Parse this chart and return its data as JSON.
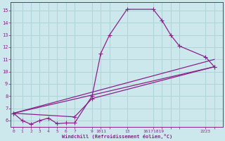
{
  "xlabel": "Windchill (Refroidissement éolien,°C)",
  "xtick_positions": [
    0,
    1,
    2,
    3,
    4,
    5,
    6,
    7,
    9,
    10,
    11,
    13,
    16,
    17,
    18,
    19,
    22,
    23
  ],
  "xtick_labels": [
    "0",
    "1",
    "2",
    "3",
    "4",
    "5",
    "6",
    "7",
    "9",
    "1011",
    "13",
    "",
    "16171819",
    "",
    "",
    "",
    "2223",
    ""
  ],
  "ytick_positions": [
    6,
    7,
    8,
    9,
    10,
    11,
    12,
    13,
    14,
    15
  ],
  "ytick_labels": [
    "6",
    "7",
    "8",
    "9",
    "10",
    "11",
    "12",
    "13",
    "14",
    "15"
  ],
  "xlim": [
    -0.3,
    24.0
  ],
  "ylim": [
    5.5,
    15.7
  ],
  "bg_color": "#cde8ec",
  "grid_color": "#afd4d8",
  "line_color": "#882288",
  "line_width": 0.9,
  "markersize": 4,
  "line1_x": [
    0,
    1,
    2,
    3,
    4,
    5,
    6,
    7,
    9,
    10,
    11,
    13,
    16,
    17,
    18,
    19,
    22,
    23
  ],
  "line1_y": [
    6.6,
    6.0,
    5.7,
    6.0,
    6.2,
    5.75,
    5.8,
    5.8,
    8.0,
    11.5,
    13.0,
    15.1,
    15.1,
    14.2,
    13.0,
    12.1,
    11.2,
    10.4
  ],
  "line2_x": [
    0,
    23
  ],
  "line2_y": [
    6.6,
    10.4
  ],
  "line3_x": [
    0,
    7,
    9,
    23
  ],
  "line3_y": [
    6.6,
    6.3,
    7.8,
    10.4
  ],
  "line4_x": [
    0,
    23
  ],
  "line4_y": [
    6.6,
    10.4
  ]
}
